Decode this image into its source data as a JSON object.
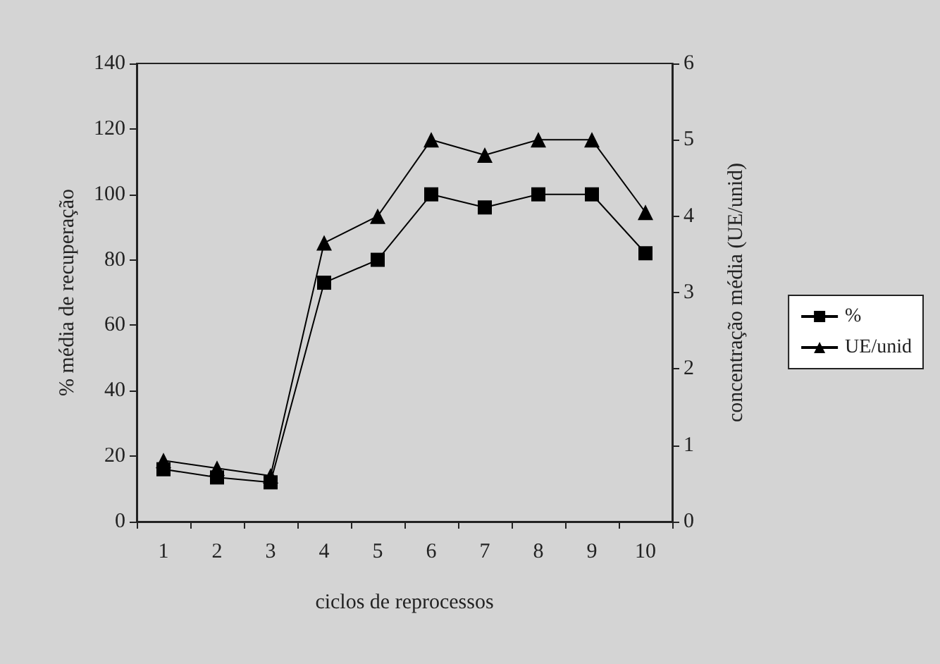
{
  "chart_data": {
    "type": "line",
    "xlabel": "ciclos de reprocessos",
    "ylabel": "% média de recuperação",
    "y2label": "concentração média (UE/unid)",
    "categories": [
      "1",
      "2",
      "3",
      "4",
      "5",
      "6",
      "7",
      "8",
      "9",
      "10"
    ],
    "series": [
      {
        "name": "%",
        "color": "#000000",
        "marker": "square",
        "values": [
          16,
          13.5,
          12,
          73,
          80,
          100,
          96,
          100,
          100,
          82
        ]
      },
      {
        "name": "UE/unid",
        "color": "#000000",
        "marker": "triangle",
        "axis": "y2",
        "values": [
          0.8,
          0.7,
          0.6,
          3.65,
          4.0,
          5.0,
          4.8,
          5.0,
          5.0,
          4.05
        ]
      }
    ],
    "ylim": [
      0,
      140
    ],
    "yticks": [
      0,
      20,
      40,
      60,
      80,
      100,
      120,
      140
    ],
    "y2lim": [
      0,
      6
    ],
    "y2ticks": [
      0,
      1,
      2,
      3,
      4,
      5,
      6
    ],
    "grid": false,
    "legend": "right",
    "line_style": "solid"
  }
}
